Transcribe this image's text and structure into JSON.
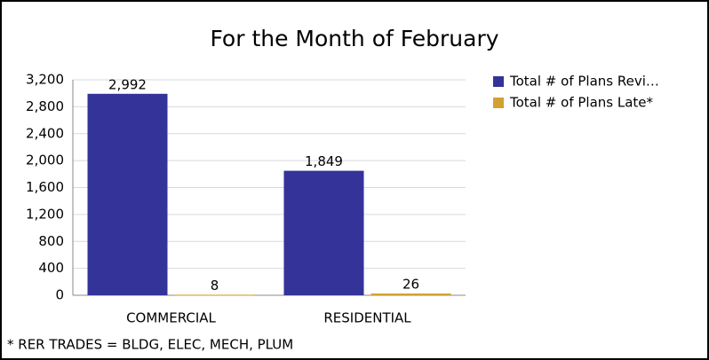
{
  "chart_data": {
    "type": "bar",
    "title": "For the Month of February",
    "categories": [
      "COMMERCIAL",
      "RESIDENTIAL"
    ],
    "series": [
      {
        "name": "Total # of Plans Revi…",
        "color": "#333399",
        "values": [
          2992,
          1849
        ],
        "value_labels": [
          "2,992",
          "1,849"
        ]
      },
      {
        "name": "Total # of Plans Late*",
        "color": "#d4a030",
        "values": [
          8,
          26
        ]
      }
    ],
    "ylim": [
      0,
      3200
    ],
    "yticks": [
      0,
      400,
      800,
      {
        "value": 1200,
        "label": "1,200"
      },
      {
        "value": 1600,
        "label": "1,600"
      },
      {
        "value": 2000,
        "label": "2,000"
      },
      {
        "value": 2400,
        "label": "2,400"
      },
      {
        "value": 2800,
        "label": "2,800"
      },
      {
        "value": 3200,
        "label": "3,200"
      }
    ],
    "grid": true,
    "legend": "right",
    "annotation": "* RER TRADES = BLDG, ELEC, MECH, PLUM"
  }
}
